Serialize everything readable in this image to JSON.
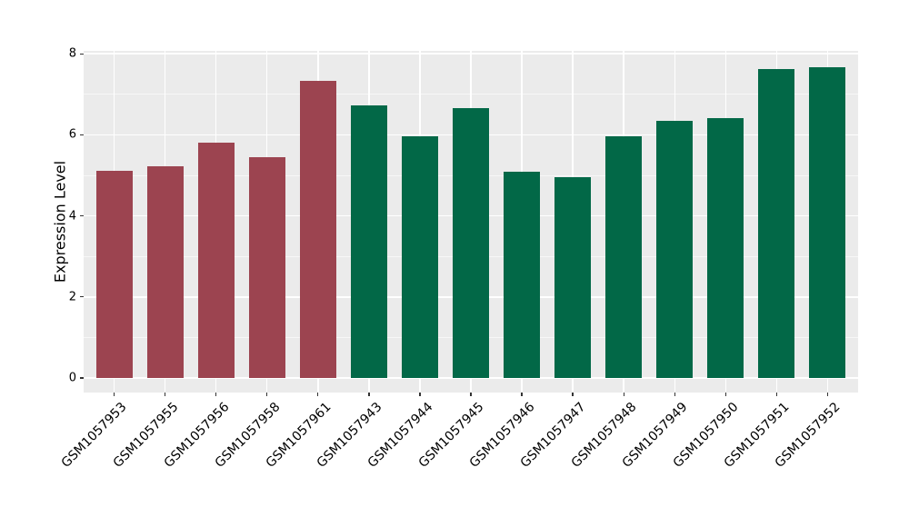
{
  "chart_data": {
    "type": "bar",
    "title": "",
    "xlabel": "",
    "ylabel": "Expression Level",
    "categories": [
      "GSM1057953",
      "GSM1057955",
      "GSM1057956",
      "GSM1057958",
      "GSM1057961",
      "GSM1057943",
      "GSM1057944",
      "GSM1057945",
      "GSM1057946",
      "GSM1057947",
      "GSM1057948",
      "GSM1057949",
      "GSM1057950",
      "GSM1057951",
      "GSM1057952"
    ],
    "values": [
      5.12,
      5.22,
      5.8,
      5.44,
      7.33,
      6.72,
      5.97,
      6.65,
      5.08,
      4.95,
      5.97,
      6.34,
      6.41,
      7.62,
      7.67
    ],
    "bar_colors": [
      "#9c4450",
      "#9c4450",
      "#9c4450",
      "#9c4450",
      "#9c4450",
      "#026847",
      "#026847",
      "#026847",
      "#026847",
      "#026847",
      "#026847",
      "#026847",
      "#026847",
      "#026847",
      "#026847"
    ],
    "palette": {
      "highlight_group": "#9c4450",
      "baseline_group": "#026847"
    },
    "ylim": [
      0,
      8
    ],
    "yticks": [
      0,
      2,
      4,
      6,
      8
    ],
    "minor_yticks": [
      1,
      3,
      5,
      7
    ],
    "grid": "on",
    "legend": "none",
    "panel_bg": "#ebebeb",
    "grid_color": "#ffffff",
    "xtick_rotation_deg": 45
  }
}
